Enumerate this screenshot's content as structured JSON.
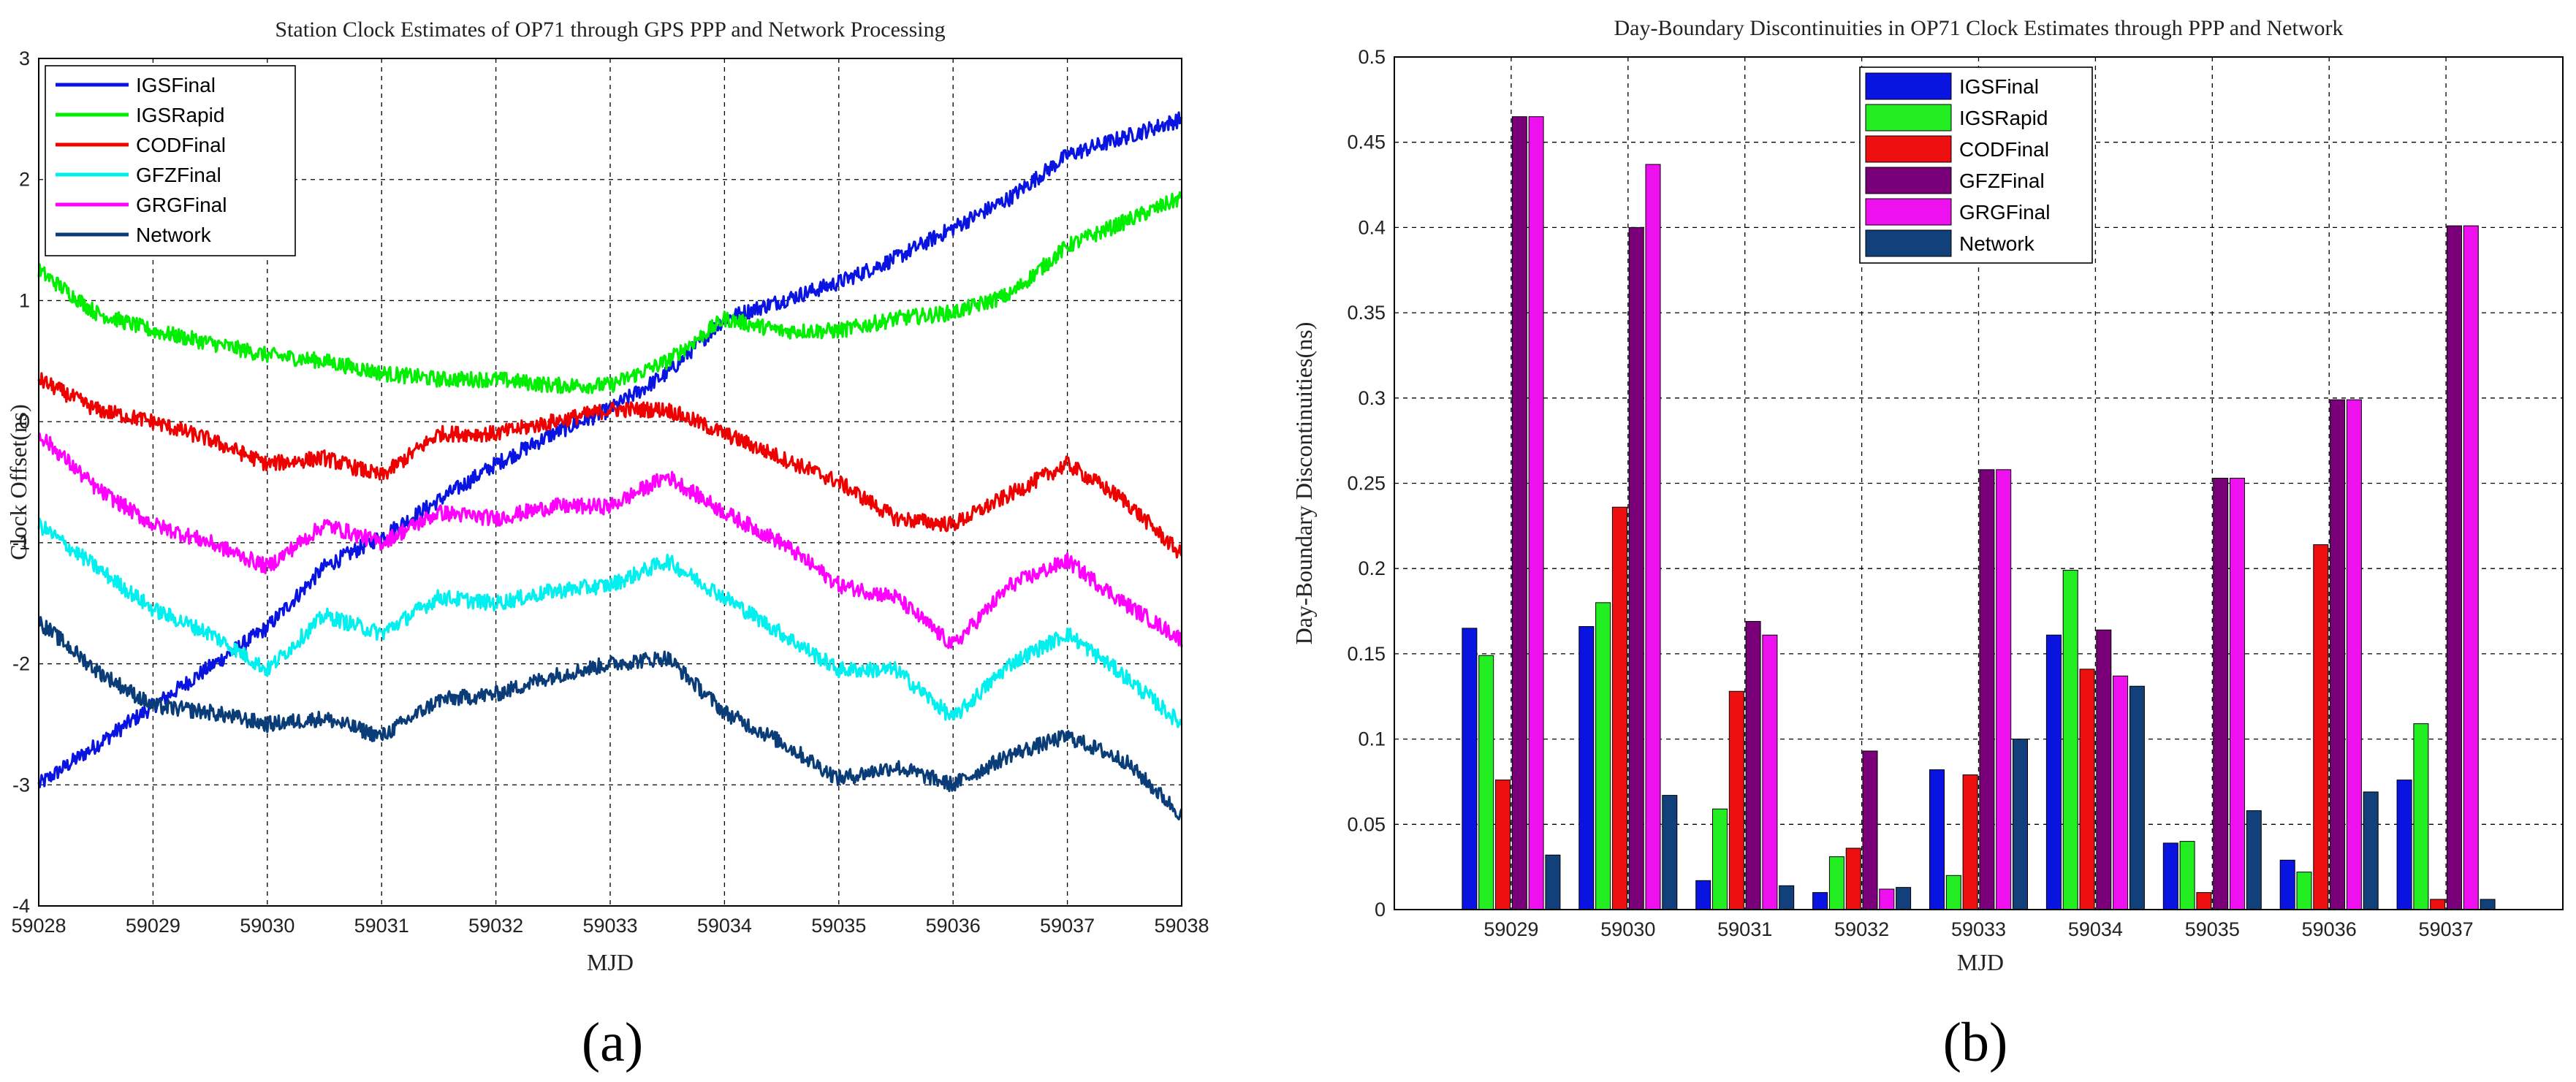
{
  "chart_data": [
    {
      "type": "line",
      "title": "Station Clock Estimates of OP71 through GPS PPP and Network Processing",
      "xlabel": "MJD",
      "ylabel": "Clock Offset(ns)",
      "xlim": [
        59028,
        59038
      ],
      "ylim": [
        -4,
        3
      ],
      "x_ticks": [
        "59028",
        "59029",
        "59030",
        "59031",
        "59032",
        "59033",
        "59034",
        "59035",
        "59036",
        "59037",
        "59038"
      ],
      "y_ticks": [
        "3",
        "2",
        "1",
        "0",
        "-1",
        "-2",
        "-3",
        "-4"
      ],
      "grid": true,
      "legend_position": "top-left",
      "series": [
        {
          "name": "IGSFinal",
          "color": "#0a14e0",
          "x": [
            59028,
            59029,
            59030,
            59030.5,
            59031,
            59031.5,
            59032,
            59032.5,
            59033,
            59033.5,
            59034,
            59034.5,
            59035,
            59035.5,
            59036,
            59036.5,
            59037,
            59037.5,
            59038
          ],
          "y": [
            -3.0,
            -2.35,
            -1.7,
            -1.2,
            -0.95,
            -0.65,
            -0.35,
            -0.1,
            0.1,
            0.4,
            0.85,
            1.0,
            1.15,
            1.35,
            1.6,
            1.85,
            2.2,
            2.35,
            2.5
          ]
        },
        {
          "name": "IGSRapid",
          "color": "#00ee00",
          "x": [
            59028,
            59028.5,
            59029,
            59029.5,
            59030,
            59030.5,
            59031,
            59031.5,
            59032,
            59032.5,
            59033,
            59033.5,
            59034,
            59034.5,
            59035,
            59035.5,
            59036,
            59036.5,
            59037,
            59037.5,
            59038
          ],
          "y": [
            1.25,
            0.9,
            0.75,
            0.65,
            0.55,
            0.5,
            0.4,
            0.35,
            0.35,
            0.3,
            0.3,
            0.5,
            0.85,
            0.75,
            0.75,
            0.85,
            0.9,
            1.05,
            1.45,
            1.65,
            1.85
          ]
        },
        {
          "name": "CODFinal",
          "color": "#ee0000",
          "x": [
            59028,
            59028.5,
            59029,
            59029.5,
            59030,
            59030.5,
            59031,
            59031.5,
            59032,
            59032.5,
            59033,
            59033.5,
            59034,
            59034.5,
            59035,
            59035.5,
            59036,
            59036.5,
            59037,
            59037.5,
            59038
          ],
          "y": [
            0.35,
            0.1,
            0.0,
            -0.15,
            -0.35,
            -0.3,
            -0.45,
            -0.1,
            -0.1,
            0.0,
            0.1,
            0.1,
            -0.1,
            -0.3,
            -0.5,
            -0.8,
            -0.85,
            -0.6,
            -0.35,
            -0.65,
            -1.1
          ]
        },
        {
          "name": "GFZFinal",
          "color": "#00f0f0",
          "x": [
            59028,
            59028.5,
            59029,
            59029.5,
            59030,
            59030.5,
            59031,
            59031.5,
            59032,
            59032.5,
            59033,
            59033.5,
            59034,
            59034.5,
            59035,
            59035.5,
            59036,
            59036.5,
            59037,
            59037.5,
            59038
          ],
          "y": [
            -0.85,
            -1.2,
            -1.55,
            -1.75,
            -2.05,
            -1.6,
            -1.75,
            -1.45,
            -1.5,
            -1.4,
            -1.35,
            -1.15,
            -1.45,
            -1.75,
            -2.05,
            -2.05,
            -2.45,
            -2.0,
            -1.75,
            -2.1,
            -2.5
          ]
        },
        {
          "name": "GRGFinal",
          "color": "#ff00ff",
          "x": [
            59028,
            59028.5,
            59029,
            59029.5,
            59030,
            59030.5,
            59031,
            59031.5,
            59032,
            59032.5,
            59033,
            59033.5,
            59034,
            59034.5,
            59035,
            59035.5,
            59036,
            59036.5,
            59037,
            59037.5,
            59038
          ],
          "y": [
            -0.1,
            -0.55,
            -0.85,
            -1.0,
            -1.2,
            -0.85,
            -1.0,
            -0.75,
            -0.8,
            -0.7,
            -0.7,
            -0.45,
            -0.75,
            -1.0,
            -1.35,
            -1.45,
            -1.85,
            -1.35,
            -1.15,
            -1.5,
            -1.8
          ]
        },
        {
          "name": "Network",
          "color": "#0a3c78",
          "x": [
            59028,
            59028.5,
            59029,
            59029.5,
            59030,
            59030.5,
            59031,
            59031.5,
            59032,
            59032.5,
            59033,
            59033.5,
            59034,
            59034.5,
            59035,
            59035.5,
            59036,
            59036.5,
            59037,
            59037.5,
            59038
          ],
          "y": [
            -1.65,
            -2.05,
            -2.35,
            -2.4,
            -2.5,
            -2.45,
            -2.6,
            -2.3,
            -2.25,
            -2.1,
            -2.0,
            -1.95,
            -2.4,
            -2.65,
            -2.95,
            -2.85,
            -3.0,
            -2.75,
            -2.6,
            -2.8,
            -3.25
          ]
        }
      ]
    },
    {
      "type": "bar",
      "title": "Day-Boundary Discontinuities in OP71 Clock Estimates through PPP and Network",
      "xlabel": "MJD",
      "ylabel": "Day-Boundary Discontinuities(ns)",
      "ylim": [
        0,
        0.5
      ],
      "y_ticks": [
        "0",
        "0.05",
        "0.1",
        "0.15",
        "0.2",
        "0.25",
        "0.3",
        "0.35",
        "0.4",
        "0.45",
        "0.5"
      ],
      "grid": true,
      "legend_position": "top-center",
      "categories": [
        "59029",
        "59030",
        "59031",
        "59032",
        "59033",
        "59034",
        "59035",
        "59036",
        "59037"
      ],
      "series": [
        {
          "name": "IGSFinal",
          "color": "#0a14e0",
          "values": [
            0.165,
            0.166,
            0.017,
            0.01,
            0.082,
            0.161,
            0.039,
            0.029,
            0.076
          ]
        },
        {
          "name": "IGSRapid",
          "color": "#22ee22",
          "values": [
            0.149,
            0.18,
            0.059,
            0.031,
            0.02,
            0.199,
            0.04,
            0.022,
            0.109
          ]
        },
        {
          "name": "CODFinal",
          "color": "#ee1010",
          "values": [
            0.076,
            0.236,
            0.128,
            0.036,
            0.079,
            0.141,
            0.01,
            0.214,
            0.006
          ]
        },
        {
          "name": "GFZFinal",
          "color": "#7a007a",
          "values": [
            0.465,
            0.4,
            0.169,
            0.093,
            0.258,
            0.164,
            0.253,
            0.299,
            0.401
          ]
        },
        {
          "name": "GRGFinal",
          "color": "#ee10ee",
          "values": [
            0.465,
            0.437,
            0.161,
            0.012,
            0.258,
            0.137,
            0.253,
            0.299,
            0.401
          ]
        },
        {
          "name": "Network",
          "color": "#12407a",
          "values": [
            0.032,
            0.067,
            0.014,
            0.013,
            0.1,
            0.131,
            0.058,
            0.069,
            0.006
          ]
        }
      ]
    }
  ],
  "captions": {
    "a": "(a)",
    "b": "(b)"
  }
}
